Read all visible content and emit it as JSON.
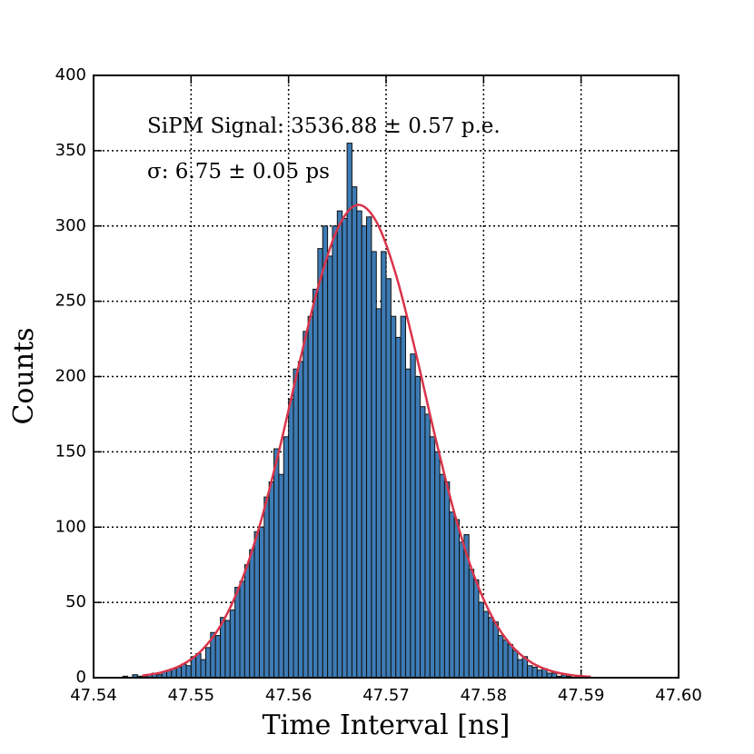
{
  "chart_data": {
    "type": "histogram",
    "xlabel": "Time Interval [ns]",
    "ylabel": "Counts",
    "annotations": [
      "SiPM Signal: 3536.88 ± 0.57 p.e.",
      "σ: 6.75 ± 0.05 ps"
    ],
    "bins": [
      47.543,
      47.5435,
      47.544,
      47.5445,
      47.545,
      47.5455,
      47.546,
      47.5465,
      47.547,
      47.5475,
      47.548,
      47.5485,
      47.549,
      47.5495,
      47.55,
      47.5505,
      47.551,
      47.5515,
      47.552,
      47.5525,
      47.553,
      47.5535,
      47.554,
      47.5545,
      47.555,
      47.5555,
      47.556,
      47.5565,
      47.557,
      47.5575,
      47.558,
      47.5585,
      47.559,
      47.5595,
      47.56,
      47.5605,
      47.561,
      47.5615,
      47.562,
      47.5625,
      47.563,
      47.5635,
      47.564,
      47.5645,
      47.565,
      47.5655,
      47.566,
      47.5665,
      47.567,
      47.5675,
      47.568,
      47.5685,
      47.569,
      47.5695,
      47.57,
      47.5705,
      47.571,
      47.5715,
      47.572,
      47.5725,
      47.573,
      47.5735,
      47.574,
      47.5745,
      47.575,
      47.5755,
      47.576,
      47.5765,
      47.577,
      47.5775,
      47.578,
      47.5785,
      47.579,
      47.5795,
      47.58,
      47.5805,
      47.581,
      47.5815,
      47.582,
      47.5825,
      47.583,
      47.5835,
      47.584,
      47.5845,
      47.585,
      47.5855,
      47.586,
      47.5865,
      47.587,
      47.5875,
      47.588,
      47.5885,
      47.589
    ],
    "counts": [
      1,
      0,
      2,
      1,
      1,
      2,
      3,
      2,
      4,
      5,
      6,
      7,
      9,
      8,
      14,
      16,
      12,
      20,
      30,
      28,
      40,
      38,
      45,
      60,
      64,
      75,
      85,
      97,
      100,
      120,
      130,
      152,
      135,
      160,
      185,
      205,
      210,
      230,
      240,
      258,
      285,
      300,
      280,
      300,
      310,
      305,
      355,
      326,
      310,
      300,
      306,
      283,
      245,
      283,
      265,
      240,
      226,
      240,
      205,
      215,
      200,
      180,
      175,
      160,
      150,
      135,
      130,
      110,
      105,
      90,
      95,
      72,
      65,
      50,
      44,
      40,
      37,
      28,
      25,
      22,
      18,
      12,
      14,
      8,
      7,
      5,
      6,
      3,
      3,
      1,
      2,
      1
    ],
    "color": "#3d7bb5",
    "fit": {
      "color": "#d9344a",
      "x": [
        47.545,
        47.547,
        47.549,
        47.551,
        47.553,
        47.555,
        47.557,
        47.559,
        47.561,
        47.563,
        47.565,
        47.567,
        47.569,
        47.571,
        47.573,
        47.575,
        47.577,
        47.579,
        47.581,
        47.583,
        47.585,
        47.587,
        47.589,
        47.591
      ],
      "values": [
        1.4,
        3.6,
        8.3,
        17.6,
        34.3,
        61.3,
        100.2,
        150.1,
        205.9,
        258.7,
        297.8,
        313.9,
        302.9,
        267.9,
        217.1,
        161.0,
        109.5,
        68.1,
        38.8,
        20.3,
        9.7,
        4.3,
        1.7,
        0.6
      ]
    },
    "xlim": [
      47.54,
      47.6
    ],
    "xticks": [
      47.54,
      47.55,
      47.56,
      47.57,
      47.58,
      47.59,
      {
        "value": 47.6,
        "label": "47.60"
      }
    ],
    "ylim": [
      0,
      400
    ],
    "yticks": [
      0,
      50,
      100,
      150,
      200,
      250,
      300,
      350,
      400
    ],
    "grid": true
  }
}
